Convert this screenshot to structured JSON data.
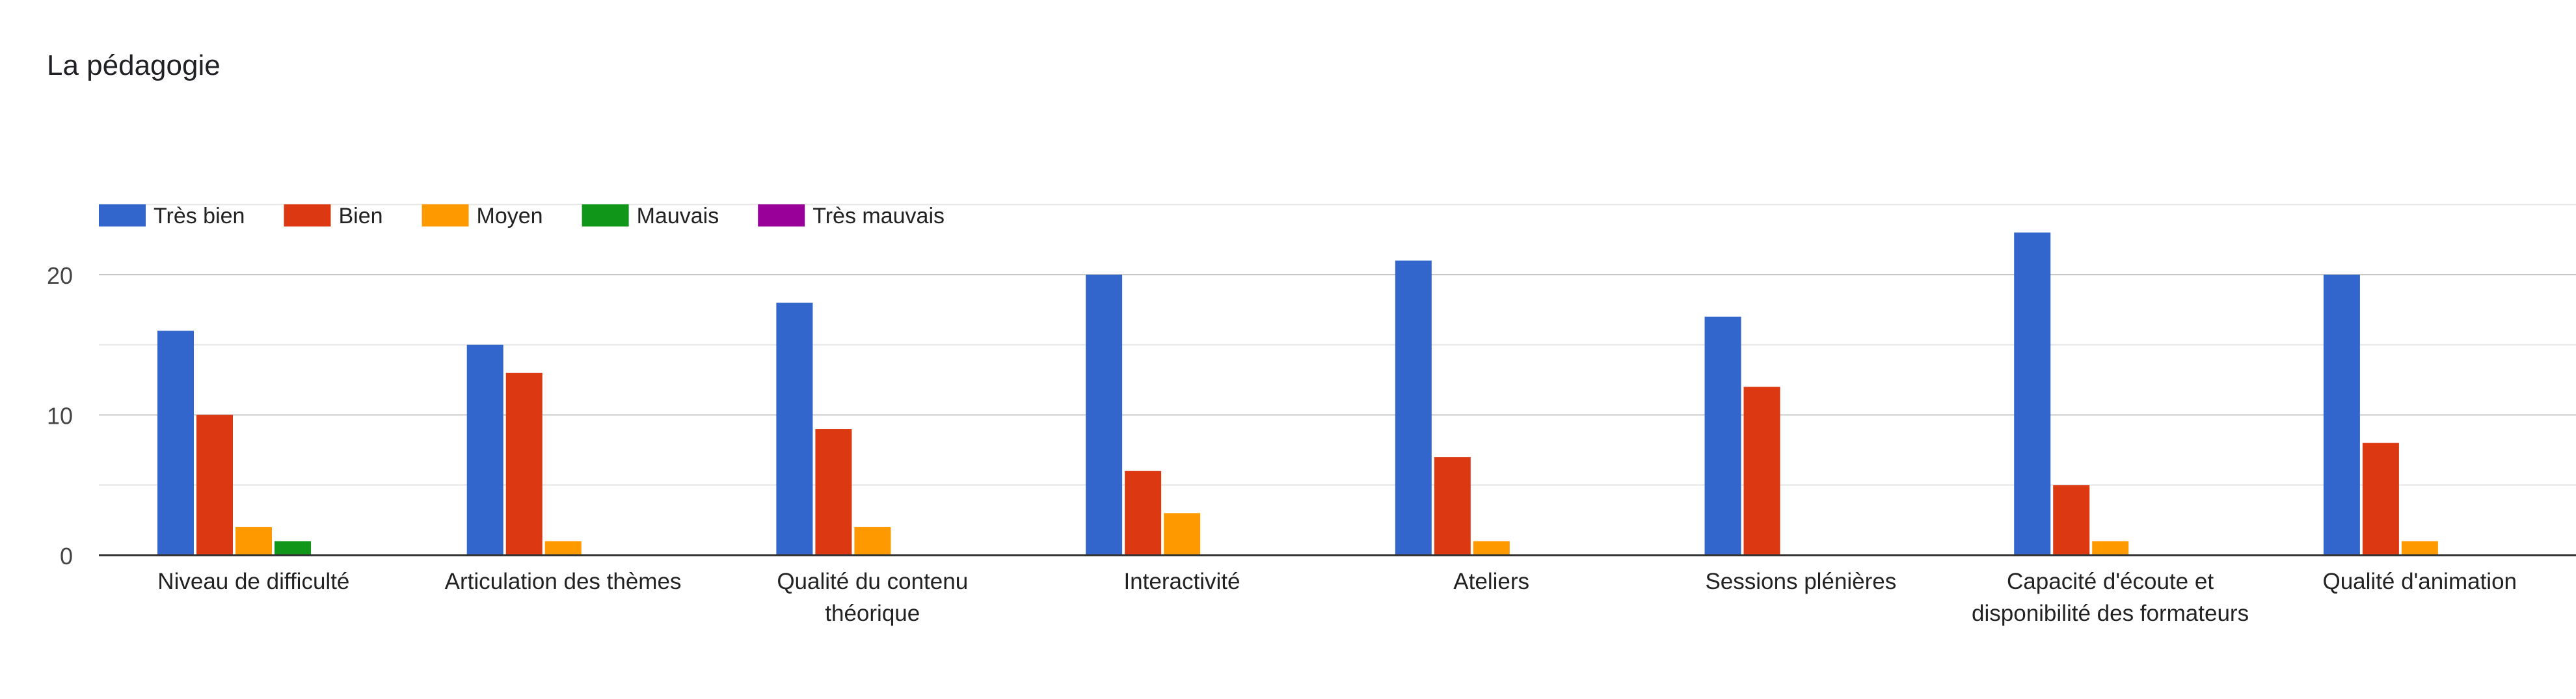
{
  "chart_data": {
    "type": "bar",
    "title": "La pédagogie",
    "categories": [
      [
        "Niveau de difficulté"
      ],
      [
        "Articulation des thèmes"
      ],
      [
        "Qualité du contenu",
        "théorique"
      ],
      [
        "Interactivité"
      ],
      [
        "Ateliers"
      ],
      [
        "Sessions plénières"
      ],
      [
        "Capacité d'écoute et",
        "disponibilité des formateurs"
      ],
      [
        "Qualité d'animation"
      ]
    ],
    "series": [
      {
        "name": "Très bien",
        "color": "#3366cc",
        "values": [
          16,
          15,
          18,
          20,
          21,
          17,
          23,
          20
        ]
      },
      {
        "name": "Bien",
        "color": "#dc3912",
        "values": [
          10,
          13,
          9,
          6,
          7,
          12,
          5,
          8
        ]
      },
      {
        "name": "Moyen",
        "color": "#ff9900",
        "values": [
          2,
          1,
          2,
          3,
          1,
          0,
          1,
          1
        ]
      },
      {
        "name": "Mauvais",
        "color": "#109618",
        "values": [
          1,
          0,
          0,
          0,
          0,
          0,
          0,
          0
        ]
      },
      {
        "name": "Très mauvais",
        "color": "#990099",
        "values": [
          0,
          0,
          0,
          0,
          0,
          0,
          0,
          0
        ]
      }
    ],
    "yticks": [
      0,
      10,
      20
    ],
    "ylim": [
      0,
      25
    ],
    "xlabel": "",
    "ylabel": "",
    "grid": true,
    "legend_position": "top-left"
  }
}
